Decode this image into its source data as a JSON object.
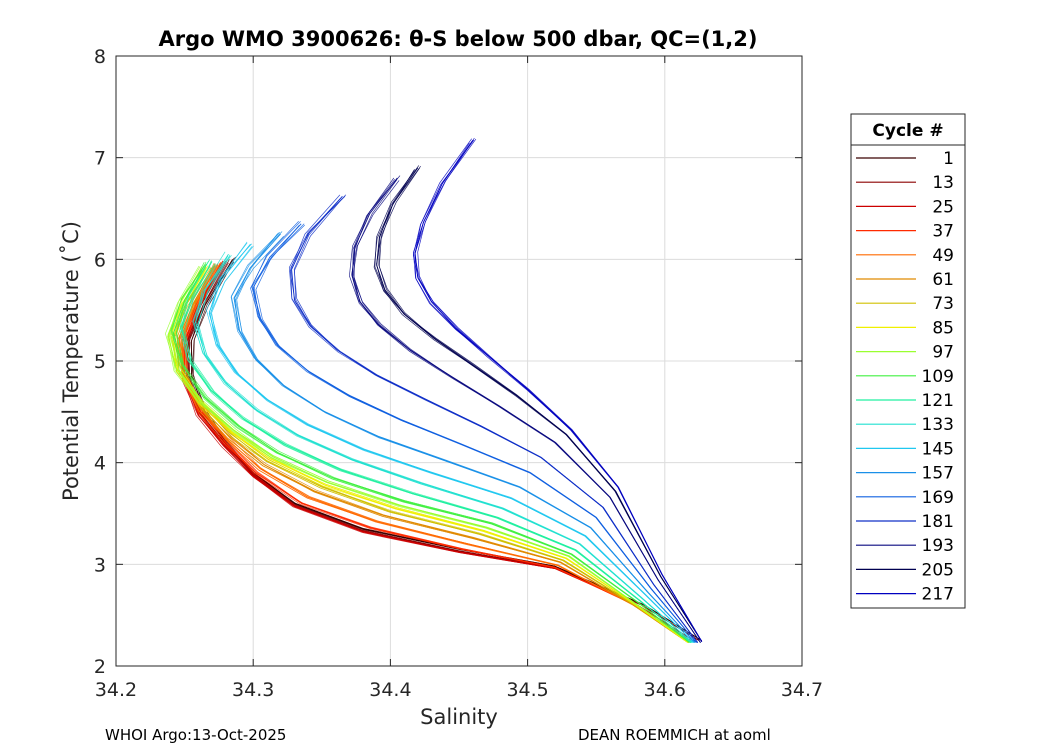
{
  "chart_data": {
    "type": "line",
    "title": "Argo WMO 3900626: θ-S below 500 dbar,  QC=(1,2)",
    "xlabel": "Salinity",
    "ylabel": "Potential Temperature (˚C)",
    "xlim": [
      34.2,
      34.7
    ],
    "ylim": [
      2,
      8
    ],
    "xticks": [
      34.2,
      34.3,
      34.4,
      34.5,
      34.6,
      34.7
    ],
    "xtick_labels": [
      "34.2",
      "34.3",
      "34.4",
      "34.5",
      "34.6",
      "34.7"
    ],
    "yticks": [
      2,
      3,
      4,
      5,
      6,
      7,
      8
    ],
    "ytick_labels": [
      "2",
      "3",
      "4",
      "5",
      "6",
      "7",
      "8"
    ],
    "grid": true,
    "legend": {
      "title": "Cycle #",
      "position": "right",
      "entries": [
        "1",
        "13",
        "25",
        "37",
        "49",
        "61",
        "73",
        "85",
        "97",
        "109",
        "121",
        "133",
        "145",
        "157",
        "169",
        "181",
        "193",
        "205",
        "217"
      ],
      "colors": [
        "#3a0000",
        "#8b0000",
        "#cc0000",
        "#ff2a00",
        "#ff6a00",
        "#e08a00",
        "#d0c000",
        "#f0f000",
        "#9aff30",
        "#40f040",
        "#20f0a0",
        "#20e0d0",
        "#20c8f0",
        "#1a90e8",
        "#1060e0",
        "#1030c8",
        "#0a0a80",
        "#000050",
        "#0000c0"
      ]
    },
    "series": [
      {
        "name": "1",
        "color": "#3a0000",
        "x": [
          34.627,
          34.585,
          34.52,
          34.45,
          34.38,
          34.33,
          34.3,
          34.28,
          34.265,
          34.255,
          34.255,
          34.265,
          34.285
        ],
        "y": [
          2.25,
          2.6,
          2.98,
          3.15,
          3.35,
          3.6,
          3.9,
          4.2,
          4.5,
          4.85,
          5.2,
          5.55,
          6.0
        ]
      },
      {
        "name": "13",
        "color": "#8b0000",
        "x": [
          34.625,
          34.583,
          34.52,
          34.45,
          34.38,
          34.33,
          34.3,
          34.28,
          34.262,
          34.252,
          34.252,
          34.262,
          34.28
        ],
        "y": [
          2.25,
          2.6,
          2.97,
          3.13,
          3.33,
          3.58,
          3.88,
          4.18,
          4.48,
          4.83,
          5.2,
          5.55,
          5.98
        ]
      },
      {
        "name": "25",
        "color": "#cc0000",
        "x": [
          34.622,
          34.58,
          34.52,
          34.45,
          34.38,
          34.33,
          34.3,
          34.278,
          34.26,
          34.25,
          34.25,
          34.26,
          34.278
        ],
        "y": [
          2.24,
          2.6,
          2.96,
          3.12,
          3.32,
          3.57,
          3.87,
          4.17,
          4.47,
          4.82,
          5.2,
          5.55,
          5.97
        ]
      },
      {
        "name": "37",
        "color": "#ff2a00",
        "x": [
          34.62,
          34.578,
          34.52,
          34.452,
          34.385,
          34.335,
          34.302,
          34.28,
          34.262,
          34.25,
          34.25,
          34.26,
          34.276
        ],
        "y": [
          2.24,
          2.6,
          2.97,
          3.15,
          3.36,
          3.6,
          3.9,
          4.2,
          4.5,
          4.84,
          5.2,
          5.55,
          5.96
        ]
      },
      {
        "name": "49",
        "color": "#ff6a00",
        "x": [
          34.618,
          34.577,
          34.522,
          34.456,
          34.39,
          34.34,
          34.305,
          34.282,
          34.262,
          34.25,
          34.248,
          34.258,
          34.274
        ],
        "y": [
          2.24,
          2.6,
          2.99,
          3.2,
          3.42,
          3.66,
          3.94,
          4.22,
          4.52,
          4.86,
          5.22,
          5.56,
          5.95
        ]
      },
      {
        "name": "61",
        "color": "#e08a00",
        "x": [
          34.617,
          34.577,
          34.524,
          34.46,
          34.395,
          34.345,
          34.308,
          34.283,
          34.262,
          34.248,
          34.246,
          34.256,
          34.272
        ],
        "y": [
          2.23,
          2.6,
          3.02,
          3.26,
          3.48,
          3.72,
          3.98,
          4.25,
          4.55,
          4.88,
          5.22,
          5.56,
          5.94
        ]
      },
      {
        "name": "73",
        "color": "#d0c000",
        "x": [
          34.617,
          34.578,
          34.526,
          34.465,
          34.4,
          34.35,
          34.31,
          34.284,
          34.262,
          34.246,
          34.243,
          34.252,
          34.268
        ],
        "y": [
          2.23,
          2.6,
          3.04,
          3.3,
          3.52,
          3.76,
          4.02,
          4.28,
          4.57,
          4.9,
          5.24,
          5.57,
          5.93
        ]
      },
      {
        "name": "85",
        "color": "#f0f000",
        "x": [
          34.617,
          34.579,
          34.528,
          34.468,
          34.404,
          34.352,
          34.312,
          34.285,
          34.262,
          34.245,
          34.24,
          34.249,
          34.265
        ],
        "y": [
          2.23,
          2.6,
          3.06,
          3.33,
          3.55,
          3.78,
          4.04,
          4.3,
          4.59,
          4.92,
          5.25,
          5.57,
          5.92
        ]
      },
      {
        "name": "97",
        "color": "#9aff30",
        "x": [
          34.618,
          34.58,
          34.53,
          34.47,
          34.406,
          34.354,
          34.314,
          34.286,
          34.262,
          34.244,
          34.238,
          34.247,
          34.263
        ],
        "y": [
          2.23,
          2.6,
          3.08,
          3.36,
          3.58,
          3.81,
          4.06,
          4.32,
          4.6,
          4.92,
          5.26,
          5.58,
          5.91
        ]
      },
      {
        "name": "109",
        "color": "#40f040",
        "x": [
          34.618,
          34.581,
          34.532,
          34.474,
          34.41,
          34.358,
          34.318,
          34.289,
          34.265,
          34.248,
          34.242,
          34.25,
          34.266
        ],
        "y": [
          2.23,
          2.62,
          3.1,
          3.4,
          3.62,
          3.85,
          4.1,
          4.36,
          4.64,
          4.96,
          5.28,
          5.6,
          5.95
        ]
      },
      {
        "name": "121",
        "color": "#20f0a0",
        "x": [
          34.619,
          34.582,
          34.535,
          34.478,
          34.416,
          34.364,
          34.323,
          34.293,
          34.27,
          34.254,
          34.248,
          34.255,
          34.27
        ],
        "y": [
          2.23,
          2.64,
          3.14,
          3.46,
          3.7,
          3.93,
          4.18,
          4.43,
          4.7,
          5.0,
          5.32,
          5.62,
          5.98
        ]
      },
      {
        "name": "133",
        "color": "#20e0d0",
        "x": [
          34.62,
          34.584,
          34.538,
          34.482,
          34.422,
          34.372,
          34.332,
          34.302,
          34.28,
          34.265,
          34.258,
          34.265,
          34.282
        ],
        "y": [
          2.23,
          2.66,
          3.2,
          3.55,
          3.8,
          4.03,
          4.27,
          4.52,
          4.78,
          5.06,
          5.38,
          5.7,
          6.05
        ]
      },
      {
        "name": "145",
        "color": "#20c8f0",
        "x": [
          34.621,
          34.586,
          34.542,
          34.488,
          34.43,
          34.38,
          34.34,
          34.31,
          34.288,
          34.274,
          34.268,
          34.277,
          34.298
        ],
        "y": [
          2.23,
          2.7,
          3.28,
          3.65,
          3.9,
          4.13,
          4.37,
          4.62,
          4.88,
          5.16,
          5.48,
          5.8,
          6.15
        ]
      },
      {
        "name": "157",
        "color": "#1a90e8",
        "x": [
          34.622,
          34.588,
          34.546,
          34.494,
          34.44,
          34.392,
          34.352,
          34.322,
          34.302,
          34.29,
          34.286,
          34.298,
          34.32
        ],
        "y": [
          2.23,
          2.72,
          3.36,
          3.76,
          4.02,
          4.25,
          4.5,
          4.76,
          5.02,
          5.3,
          5.62,
          5.92,
          6.25
        ]
      },
      {
        "name": "169",
        "color": "#1060e0",
        "x": [
          34.623,
          34.59,
          34.55,
          34.502,
          34.452,
          34.408,
          34.37,
          34.34,
          34.318,
          34.305,
          34.3,
          34.312,
          34.335
        ],
        "y": [
          2.23,
          2.76,
          3.46,
          3.9,
          4.18,
          4.42,
          4.66,
          4.9,
          5.15,
          5.42,
          5.72,
          6.02,
          6.35
        ]
      },
      {
        "name": "181",
        "color": "#1030c8",
        "x": [
          34.624,
          34.592,
          34.555,
          34.51,
          34.466,
          34.426,
          34.39,
          34.362,
          34.342,
          34.33,
          34.328,
          34.34,
          34.365
        ],
        "y": [
          2.23,
          2.8,
          3.56,
          4.05,
          4.36,
          4.62,
          4.86,
          5.1,
          5.34,
          5.6,
          5.9,
          6.25,
          6.62
        ]
      },
      {
        "name": "193",
        "color": "#0a0a80",
        "x": [
          34.626,
          34.595,
          34.56,
          34.52,
          34.48,
          34.445,
          34.415,
          34.392,
          34.378,
          34.372,
          34.374,
          34.385,
          34.405
        ],
        "y": [
          2.23,
          2.85,
          3.66,
          4.2,
          4.55,
          4.84,
          5.1,
          5.35,
          5.58,
          5.84,
          6.12,
          6.45,
          6.8
        ]
      },
      {
        "name": "205",
        "color": "#000050",
        "x": [
          34.627,
          34.597,
          34.564,
          34.528,
          34.492,
          34.46,
          34.432,
          34.41,
          34.396,
          34.39,
          34.392,
          34.402,
          34.42
        ],
        "y": [
          2.24,
          2.88,
          3.72,
          4.28,
          4.66,
          4.96,
          5.22,
          5.46,
          5.7,
          5.94,
          6.22,
          6.55,
          6.9
        ]
      },
      {
        "name": "217",
        "color": "#0000c0",
        "x": [
          34.627,
          34.598,
          34.566,
          34.532,
          34.5,
          34.472,
          34.448,
          34.43,
          34.42,
          34.418,
          34.424,
          34.438,
          34.46
        ],
        "y": [
          2.24,
          2.9,
          3.76,
          4.32,
          4.72,
          5.04,
          5.32,
          5.58,
          5.82,
          6.06,
          6.36,
          6.75,
          7.17
        ]
      }
    ]
  },
  "footer": {
    "left": "WHOI Argo:13-Oct-2025",
    "right": "DEAN ROEMMICH at aoml"
  }
}
